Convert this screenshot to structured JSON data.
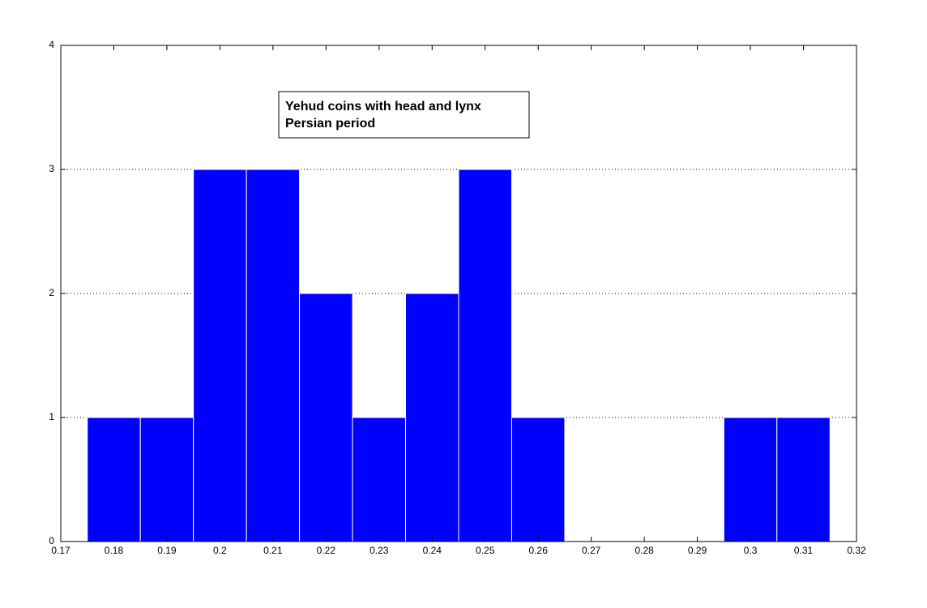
{
  "chart_data": {
    "type": "histogram",
    "bins": [
      0.175,
      0.185,
      0.195,
      0.205,
      0.215,
      0.225,
      0.235,
      0.245,
      0.255,
      0.265,
      0.275,
      0.285,
      0.295,
      0.305,
      0.315
    ],
    "counts": [
      1,
      1,
      3,
      3,
      2,
      1,
      2,
      3,
      1,
      0,
      0,
      0,
      1,
      1
    ],
    "color": "#0000ff",
    "xlim": [
      0.17,
      0.32
    ],
    "xticks": [
      0.17,
      0.18,
      0.19,
      0.2,
      0.21,
      0.22,
      0.23,
      0.24,
      0.25,
      0.26,
      0.27,
      0.28,
      0.29,
      0.3,
      0.31,
      0.32
    ],
    "ylim": [
      0,
      4
    ],
    "yticks": [
      0,
      1,
      2,
      3,
      4
    ],
    "grid": true,
    "annotation": [
      "Yehud coins with head and lynx",
      "Persian period"
    ]
  }
}
